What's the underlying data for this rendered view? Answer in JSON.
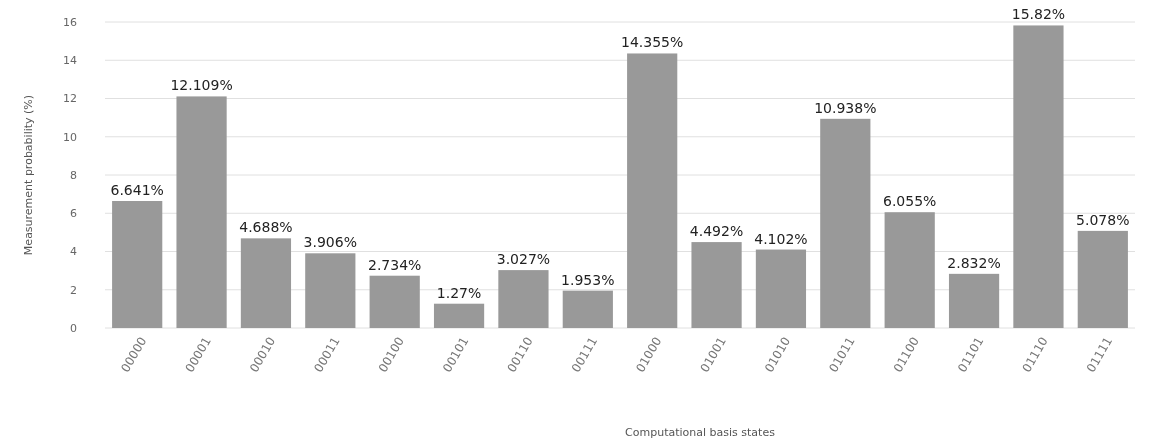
{
  "chart_data": {
    "type": "bar",
    "xlabel": "Computational basis states",
    "ylabel": "Measurement probability (%)",
    "categories": [
      "00000",
      "00001",
      "00010",
      "00011",
      "00100",
      "00101",
      "00110",
      "00111",
      "01000",
      "01001",
      "01010",
      "01011",
      "01100",
      "01101",
      "01110",
      "01111"
    ],
    "values": [
      6.641,
      12.109,
      4.688,
      3.906,
      2.734,
      1.27,
      3.027,
      1.953,
      14.355,
      4.492,
      4.102,
      10.938,
      6.055,
      2.832,
      15.82,
      5.078
    ],
    "value_labels": [
      "6.641%",
      "12.109%",
      "4.688%",
      "3.906%",
      "2.734%",
      "1.27%",
      "3.027%",
      "1.953%",
      "14.355%",
      "4.492%",
      "4.102%",
      "10.938%",
      "6.055%",
      "2.832%",
      "15.82%",
      "5.078%"
    ],
    "color": "#999999",
    "ylim": [
      0,
      16
    ],
    "yticks": [
      0,
      2,
      4,
      6,
      8,
      10,
      12,
      14,
      16
    ],
    "grid": "y"
  }
}
